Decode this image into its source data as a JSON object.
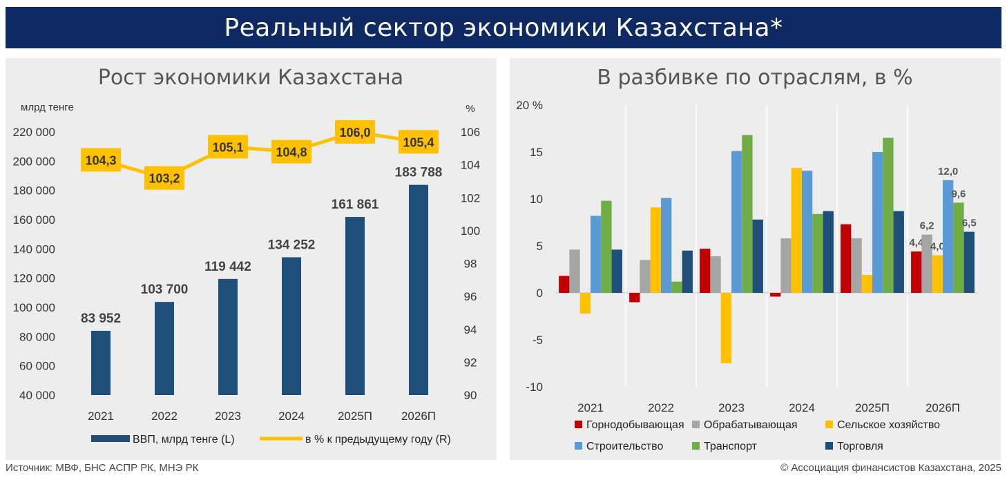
{
  "header": {
    "title": "Реальный сектор экономики Казахстана*"
  },
  "footer": {
    "source": "Источник: МВФ, БНС АСПР РК, МНЭ РК",
    "copyright": "© Ассоциация финансистов Казахстана, 2025"
  },
  "colors": {
    "header_bg": "#0f2a63",
    "gdp_bar": "#1f4e79",
    "growth_line": "#ffc000"
  },
  "chart_data": [
    {
      "type": "bar",
      "title": "Рост экономики Казахстана",
      "left_unit": "млрд тенге",
      "right_unit": "%",
      "categories": [
        "2021",
        "2022",
        "2023",
        "2024",
        "2025П",
        "2026П"
      ],
      "series": [
        {
          "name": "ВВП, млрд тенге (L)",
          "axis": "left",
          "values": [
            83952,
            103700,
            119442,
            134252,
            161861,
            183788
          ],
          "labels": [
            "83 952",
            "103 700",
            "119 442",
            "134 252",
            "161 861",
            "183 788"
          ]
        },
        {
          "name": "в % к предыдущему году (R)",
          "axis": "right",
          "type": "line",
          "values": [
            104.3,
            103.2,
            105.1,
            104.8,
            106.0,
            105.4
          ],
          "labels": [
            "104,3",
            "103,2",
            "105,1",
            "104,8",
            "106,0",
            "105,4"
          ]
        }
      ],
      "ylim_left": [
        40000,
        220000
      ],
      "yticks_left": [
        "40 000",
        "60 000",
        "80 000",
        "100 000",
        "120 000",
        "140 000",
        "160 000",
        "180 000",
        "200 000",
        "220 000"
      ],
      "ylim_right": [
        90,
        106
      ],
      "yticks_right": [
        "90",
        "92",
        "94",
        "96",
        "98",
        "100",
        "102",
        "104",
        "106"
      ]
    },
    {
      "type": "bar",
      "title": "В разбивке по отраслям, в %",
      "categories": [
        "2021",
        "2022",
        "2023",
        "2024",
        "2025П",
        "2026П"
      ],
      "ylim": [
        -10,
        20
      ],
      "yticks": [
        "-10",
        "-5",
        "0",
        "5",
        "10",
        "15",
        "20 %"
      ],
      "series": [
        {
          "name": "Горнодобывающая",
          "color": "#c00000",
          "values": [
            1.8,
            -1.0,
            4.7,
            -0.4,
            7.3,
            4.4
          ]
        },
        {
          "name": "Обрабатывающая",
          "color": "#a5a5a5",
          "values": [
            4.6,
            3.5,
            3.9,
            5.8,
            5.8,
            6.2
          ]
        },
        {
          "name": "Сельское хозяйство",
          "color": "#ffc000",
          "values": [
            -2.2,
            9.1,
            -7.5,
            13.3,
            1.9,
            4.0
          ]
        },
        {
          "name": "Строительство",
          "color": "#5b9bd5",
          "values": [
            8.2,
            10.1,
            15.1,
            13.0,
            15.0,
            12.0
          ]
        },
        {
          "name": "Транспорт",
          "color": "#70ad47",
          "values": [
            9.8,
            1.2,
            16.8,
            8.4,
            16.5,
            9.6
          ]
        },
        {
          "name": "Торговля",
          "color": "#1f4e79",
          "values": [
            4.6,
            4.5,
            7.8,
            8.7,
            8.7,
            6.5
          ]
        }
      ],
      "last_labels": [
        "4,4",
        "6,2",
        "4,0",
        "12,0",
        "9,6",
        "6,5"
      ]
    }
  ]
}
